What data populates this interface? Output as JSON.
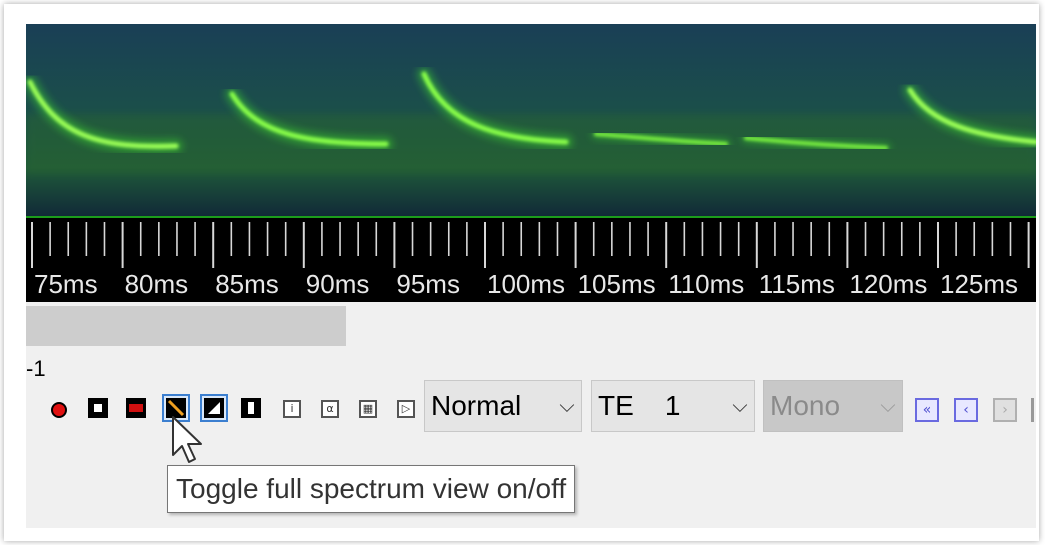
{
  "spectrogram": {
    "background": "#14324a",
    "signal_color": "#3fdc2f"
  },
  "ruler": {
    "labels": [
      "75ms",
      "80ms",
      "85ms",
      "90ms",
      "95ms",
      "100ms",
      "105ms",
      "110ms",
      "115ms",
      "120ms",
      "125ms"
    ]
  },
  "channel": {
    "label": "-1"
  },
  "toolbar": {
    "record_icon": "record-icon",
    "stop_icon": "stop-icon",
    "spectrum_icon": "full-spectrum-toggle-icon",
    "info_glyph": "i",
    "alpha_glyph": "α",
    "grid_glyph": "▦",
    "play_glyph": "▷"
  },
  "selects": {
    "mode": "Normal",
    "te": "TE    1",
    "channel_mode": "Mono"
  },
  "nav": {
    "first": "«",
    "prev": "‹",
    "next": "›"
  },
  "tooltip": {
    "text": "Toggle full spectrum view on/off"
  }
}
